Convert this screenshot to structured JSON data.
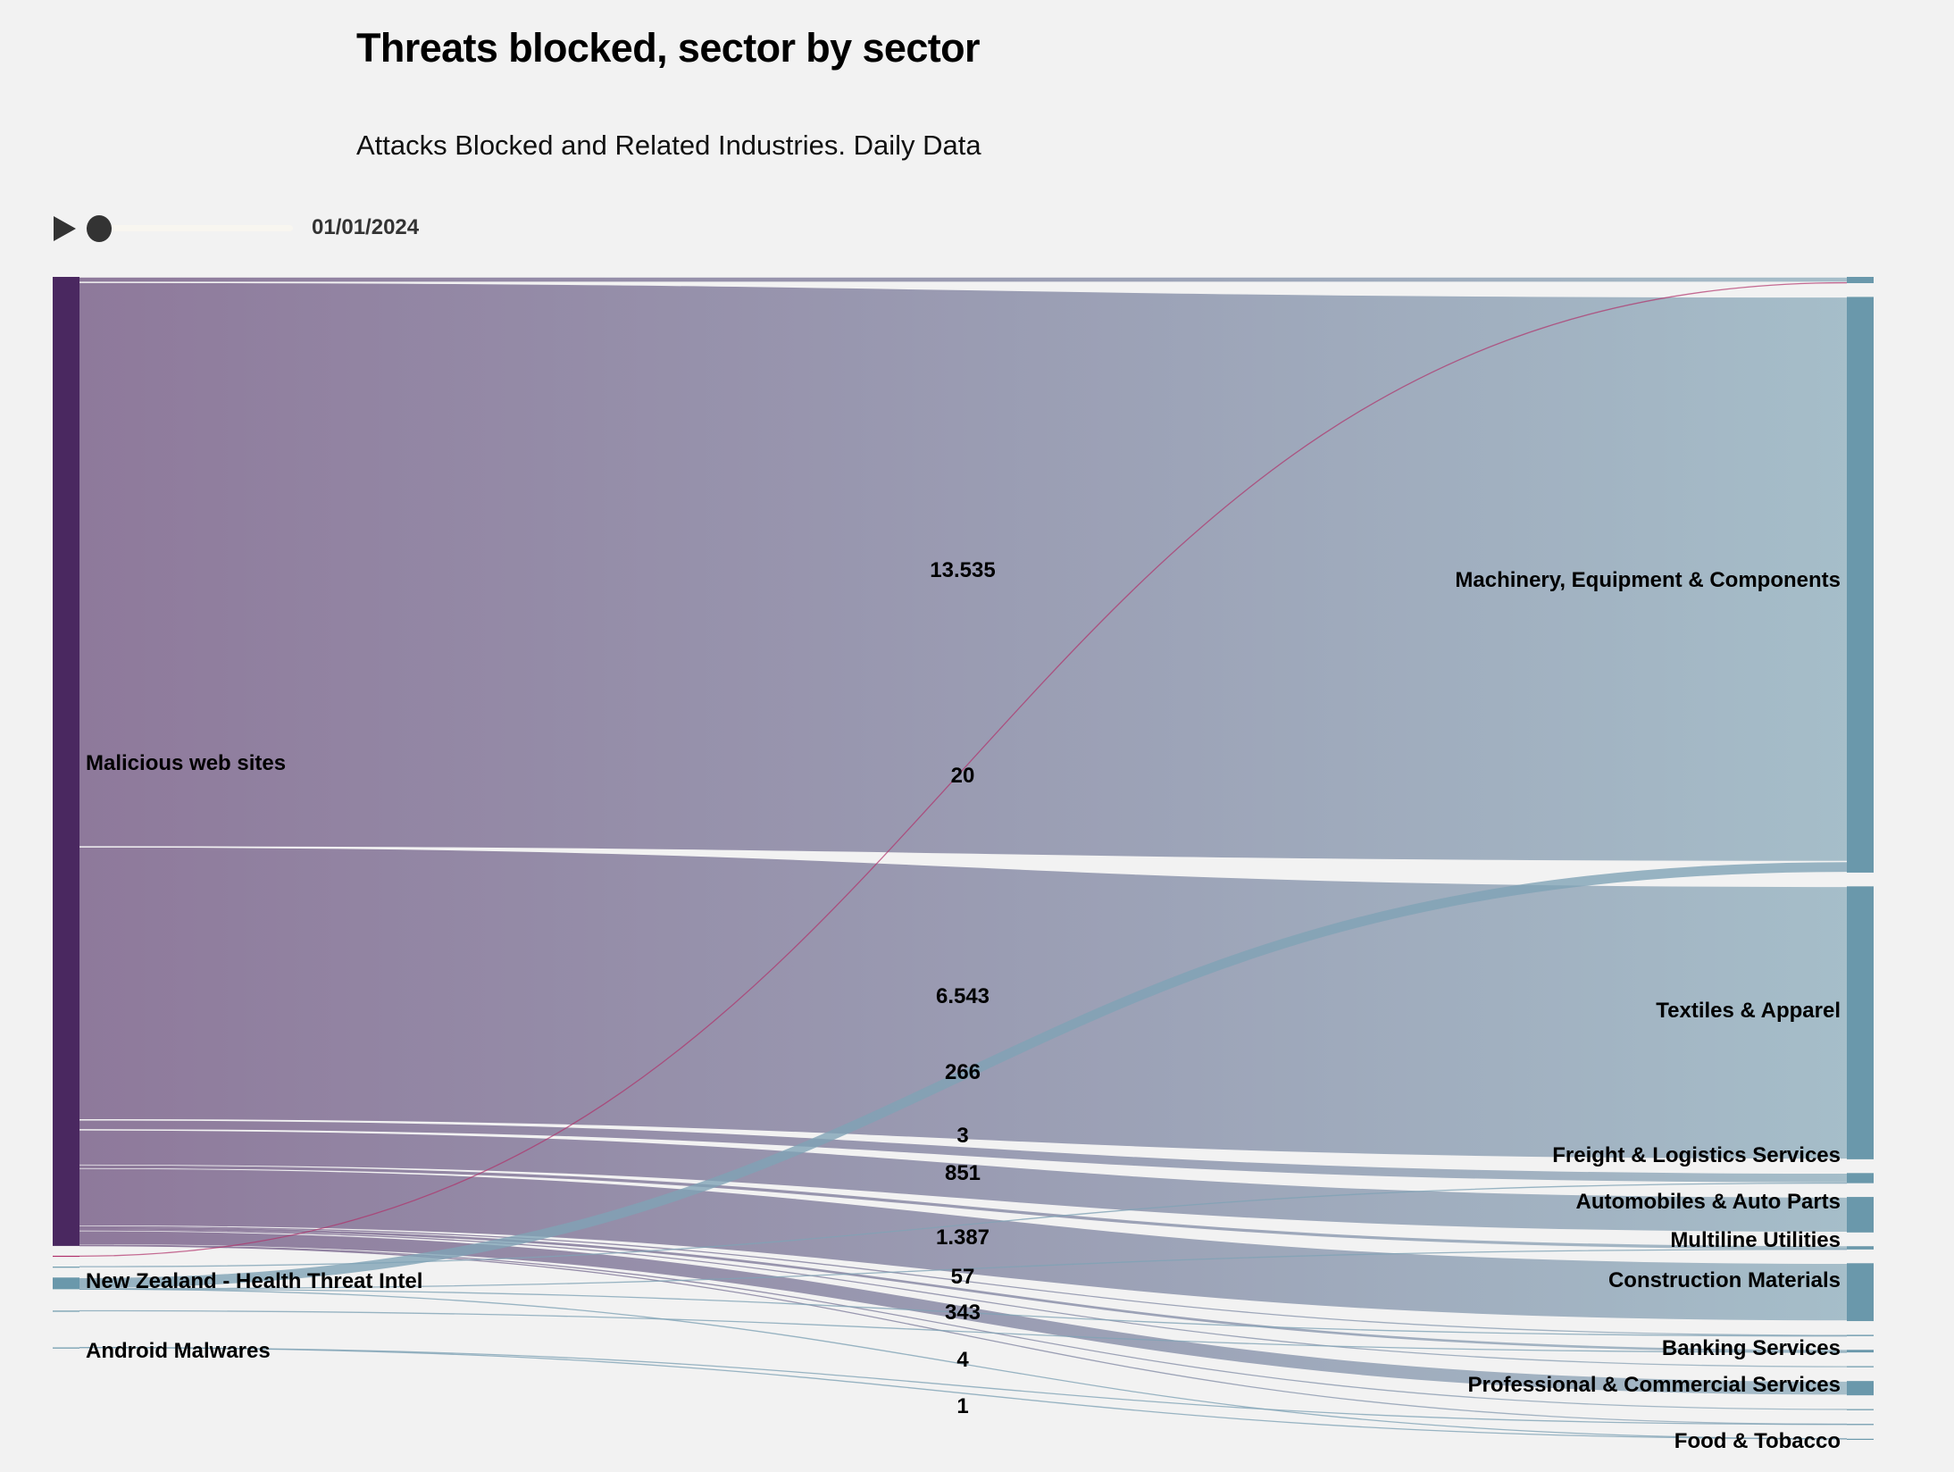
{
  "title": "Threats blocked, sector by sector",
  "subtitle": "Attacks Blocked and Related Industries. Daily Data",
  "controls": {
    "play_icon": "play-icon",
    "date": "01/01/2024",
    "slider_progress": 0
  },
  "colors": {
    "source_node": "#4a2860",
    "target_node": "#6a98ab",
    "link_start": "#8b7598",
    "link_end": "#a3bcc8",
    "nz_link": "#7fa3b5",
    "red_link": "#b0306a"
  },
  "chart_data": {
    "type": "sankey",
    "title": "Threats blocked, sector by sector",
    "subtitle": "Attacks Blocked and Related Industries. Daily Data",
    "sources": [
      {
        "label": "Malicious web sites",
        "color": "#4a2860"
      },
      {
        "label": "",
        "color": "#b0306a"
      },
      {
        "label": "",
        "color": "#6a98ab"
      },
      {
        "label": "New Zealand - Health Threat Intel",
        "color": "#6a98ab"
      },
      {
        "label": "",
        "color": "#6a98ab"
      },
      {
        "label": "Android Malwares",
        "color": "#6a98ab"
      }
    ],
    "targets": [
      {
        "label": ""
      },
      {
        "label": "Machinery, Equipment & Components"
      },
      {
        "label": "Textiles & Apparel"
      },
      {
        "label": "Freight & Logistics Services"
      },
      {
        "label": "Automobiles & Auto Parts"
      },
      {
        "label": "Multiline Utilities"
      },
      {
        "label": "Construction Materials"
      },
      {
        "label": ""
      },
      {
        "label": "Banking Services"
      },
      {
        "label": ""
      },
      {
        "label": "Professional & Commercial Services"
      },
      {
        "label": ""
      },
      {
        "label": ""
      },
      {
        "label": "Food & Tobacco"
      }
    ],
    "links": [
      {
        "source": 0,
        "target": 0,
        "value": 130,
        "label": ""
      },
      {
        "source": 0,
        "target": 1,
        "value": 13535,
        "label": "13.535"
      },
      {
        "source": 0,
        "target": 2,
        "value": 6543,
        "label": "6.543"
      },
      {
        "source": 0,
        "target": 3,
        "value": 240,
        "label": ""
      },
      {
        "source": 0,
        "target": 4,
        "value": 851,
        "label": "851"
      },
      {
        "source": 0,
        "target": 5,
        "value": 70,
        "label": ""
      },
      {
        "source": 0,
        "target": 6,
        "value": 1387,
        "label": "1.387"
      },
      {
        "source": 0,
        "target": 7,
        "value": 25,
        "label": ""
      },
      {
        "source": 0,
        "target": 8,
        "value": 57,
        "label": "57"
      },
      {
        "source": 0,
        "target": 9,
        "value": 25,
        "label": ""
      },
      {
        "source": 0,
        "target": 10,
        "value": 343,
        "label": "343"
      },
      {
        "source": 0,
        "target": 11,
        "value": 15,
        "label": ""
      },
      {
        "source": 0,
        "target": 12,
        "value": 10,
        "label": ""
      },
      {
        "source": 1,
        "target": 0,
        "value": 20,
        "label": "20"
      },
      {
        "source": 2,
        "target": 3,
        "value": 3,
        "label": "3"
      },
      {
        "source": 3,
        "target": 1,
        "value": 266,
        "label": "266"
      },
      {
        "source": 3,
        "target": 5,
        "value": 8,
        "label": ""
      },
      {
        "source": 3,
        "target": 7,
        "value": 4,
        "label": "4"
      },
      {
        "source": 3,
        "target": 13,
        "value": 2,
        "label": ""
      },
      {
        "source": 4,
        "target": 8,
        "value": 5,
        "label": ""
      },
      {
        "source": 5,
        "target": 12,
        "value": 3,
        "label": ""
      },
      {
        "source": 5,
        "target": 13,
        "value": 1,
        "label": "1"
      }
    ]
  }
}
